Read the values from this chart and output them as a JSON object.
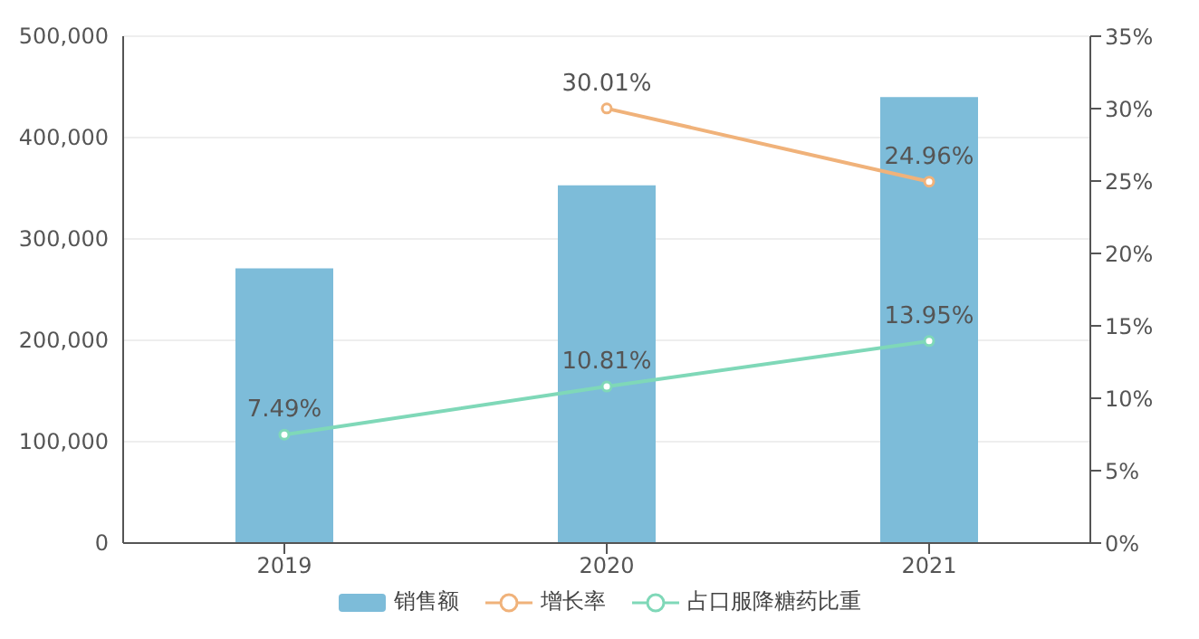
{
  "chart_data": {
    "type": "bar",
    "categories": [
      "2019",
      "2020",
      "2021"
    ],
    "series": [
      {
        "name": "销售额",
        "color": "#7dbcd9",
        "values": [
          271000,
          353000,
          440000
        ]
      },
      {
        "name": "增长率",
        "type": "line",
        "axis": "y2",
        "color": "#f0b27a",
        "values": [
          null,
          30.01,
          24.96
        ],
        "value_labels": [
          null,
          "30.01%",
          "24.96%"
        ]
      },
      {
        "name": "占口服降糖药比重",
        "type": "line",
        "axis": "y2",
        "color": "#7fd8b8",
        "values": [
          7.49,
          10.81,
          13.95
        ],
        "value_labels": [
          "7.49%",
          "10.81%",
          "13.95%"
        ]
      }
    ],
    "ylim": [
      0,
      500000
    ],
    "yticks": [
      0,
      {
        "value": 100000,
        "label": "100,000"
      },
      {
        "value": 200000,
        "label": "200,000"
      },
      {
        "value": 300000,
        "label": "300,000"
      },
      {
        "value": 400000,
        "label": "400,000"
      },
      {
        "value": 500000,
        "label": "500,000"
      }
    ],
    "y2lim": [
      0,
      35
    ],
    "y2ticks": [
      {
        "value": 0,
        "label": "0%"
      },
      {
        "value": 5,
        "label": "5%"
      },
      {
        "value": 10,
        "label": "10%"
      },
      {
        "value": 15,
        "label": "15%"
      },
      {
        "value": 20,
        "label": "20%"
      },
      {
        "value": 25,
        "label": "25%"
      },
      {
        "value": 30,
        "label": "30%"
      },
      {
        "value": 35,
        "label": "35%"
      }
    ],
    "grid": "y",
    "legend": "bottom",
    "marker": "circle"
  }
}
